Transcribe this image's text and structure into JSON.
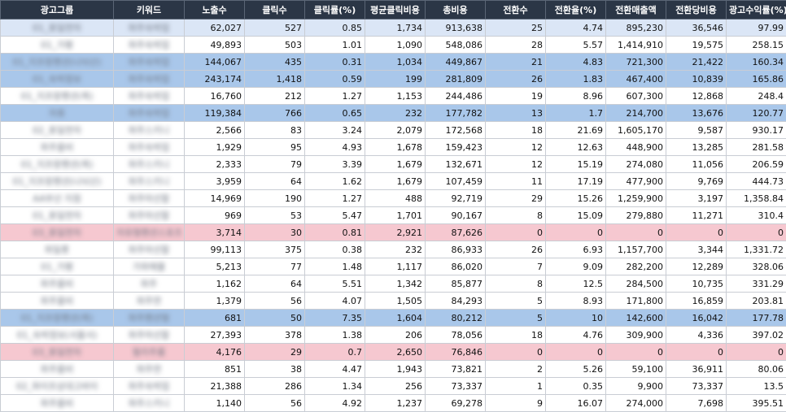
{
  "table": {
    "columns": [
      "광고그룹",
      "키워드",
      "노출수",
      "클릭수",
      "클릭률(%)",
      "평균클릭비용",
      "총비용",
      "전환수",
      "전환율(%)",
      "전환매출액",
      "전환당비용",
      "광고수익률(%)"
    ],
    "rows": [
      {
        "hl": "light",
        "group": "01_휴일연차",
        "keyword": "파주숙박업",
        "cells": [
          "62,027",
          "527",
          "0.85",
          "1,734",
          "913,638",
          "25",
          "4.74",
          "895,230",
          "36,546",
          "97.99"
        ]
      },
      {
        "hl": "none",
        "group": "01_가평",
        "keyword": "파주숙박업",
        "cells": [
          "49,893",
          "503",
          "1.01",
          "1,090",
          "548,086",
          "28",
          "5.57",
          "1,414,910",
          "19,575",
          "258.15"
        ]
      },
      {
        "hl": "blue",
        "group": "01_지프랑펜션(나뉘산)",
        "keyword": "파주숙박업",
        "cells": [
          "144,067",
          "435",
          "0.31",
          "1,034",
          "449,867",
          "21",
          "4.83",
          "721,300",
          "21,422",
          "160.34"
        ]
      },
      {
        "hl": "blue",
        "group": "01_숙박정보",
        "keyword": "파주숙박업",
        "cells": [
          "243,174",
          "1,418",
          "0.59",
          "199",
          "281,809",
          "26",
          "1.83",
          "467,400",
          "10,839",
          "165.86"
        ]
      },
      {
        "hl": "none",
        "group": "01_지프랑펜션(퀵)",
        "keyword": "파주숙박업",
        "cells": [
          "16,760",
          "212",
          "1.27",
          "1,153",
          "244,486",
          "19",
          "8.96",
          "607,300",
          "12,868",
          "248.4"
        ]
      },
      {
        "hl": "blue",
        "group": "자휴",
        "keyword": "파주숙박업",
        "cells": [
          "119,384",
          "766",
          "0.65",
          "232",
          "177,782",
          "13",
          "1.7",
          "214,700",
          "13,676",
          "120.77"
        ]
      },
      {
        "hl": "none",
        "group": "02_휴일연차",
        "keyword": "파주스키니",
        "cells": [
          "2,566",
          "83",
          "3.24",
          "2,079",
          "172,568",
          "18",
          "21.69",
          "1,605,170",
          "9,587",
          "930.17"
        ]
      },
      {
        "hl": "none",
        "group": "파주을비",
        "keyword": "파주숙박업",
        "cells": [
          "1,929",
          "95",
          "4.93",
          "1,678",
          "159,423",
          "12",
          "12.63",
          "448,900",
          "13,285",
          "281.58"
        ]
      },
      {
        "hl": "none",
        "group": "01_지프랑펜션(퀵)",
        "keyword": "파주스키니",
        "cells": [
          "2,333",
          "79",
          "3.39",
          "1,679",
          "132,671",
          "12",
          "15.19",
          "274,080",
          "11,056",
          "206.59"
        ]
      },
      {
        "hl": "none",
        "group": "01_지프랑펜션(나뉘산)",
        "keyword": "파주스키니",
        "cells": [
          "3,959",
          "64",
          "1.62",
          "1,679",
          "107,459",
          "11",
          "17.19",
          "477,900",
          "9,769",
          "444.73"
        ]
      },
      {
        "hl": "none",
        "group": "AA부산 지점",
        "keyword": "파주마선할",
        "cells": [
          "14,969",
          "190",
          "1.27",
          "488",
          "92,719",
          "29",
          "15.26",
          "1,259,900",
          "3,197",
          "1,358.84"
        ]
      },
      {
        "hl": "none",
        "group": "01_휴일연차",
        "keyword": "파주마선할",
        "cells": [
          "969",
          "53",
          "5.47",
          "1,701",
          "90,167",
          "8",
          "15.09",
          "279,880",
          "11,271",
          "310.4"
        ]
      },
      {
        "hl": "pink",
        "group": "03_휴일연차",
        "keyword": "자유형펜션스포츠",
        "cells": [
          "3,714",
          "30",
          "0.81",
          "2,921",
          "87,626",
          "0",
          "0",
          "0",
          "0",
          "0"
        ]
      },
      {
        "hl": "none",
        "group": "파일롯",
        "keyword": "파주마선할",
        "cells": [
          "99,113",
          "375",
          "0.38",
          "232",
          "86,933",
          "26",
          "6.93",
          "1,157,700",
          "3,344",
          "1,331.72"
        ]
      },
      {
        "hl": "none",
        "group": "01_가평",
        "keyword": "가파매물",
        "cells": [
          "5,213",
          "77",
          "1.48",
          "1,117",
          "86,020",
          "7",
          "9.09",
          "282,200",
          "12,289",
          "328.06"
        ]
      },
      {
        "hl": "none",
        "group": "파주을비",
        "keyword": "파주",
        "cells": [
          "1,162",
          "64",
          "5.51",
          "1,342",
          "85,877",
          "8",
          "12.5",
          "284,500",
          "10,735",
          "331.29"
        ]
      },
      {
        "hl": "none",
        "group": "파주을비",
        "keyword": "파주연",
        "cells": [
          "1,379",
          "56",
          "4.07",
          "1,505",
          "84,293",
          "5",
          "8.93",
          "171,800",
          "16,859",
          "203.81"
        ]
      },
      {
        "hl": "blue",
        "group": "01_지프랑펜션(퀵)",
        "keyword": "파주펜션형",
        "cells": [
          "681",
          "50",
          "7.35",
          "1,604",
          "80,212",
          "5",
          "10",
          "142,600",
          "16,042",
          "177.78"
        ]
      },
      {
        "hl": "none",
        "group": "01_숙박정보(서울서)",
        "keyword": "파주마선할",
        "cells": [
          "27,393",
          "378",
          "1.38",
          "206",
          "78,056",
          "18",
          "4.76",
          "309,900",
          "4,336",
          "397.02"
        ]
      },
      {
        "hl": "pink",
        "group": "03_휴일연차",
        "keyword": "필리주룸",
        "cells": [
          "4,176",
          "29",
          "0.7",
          "2,650",
          "76,846",
          "0",
          "0",
          "0",
          "0",
          "0"
        ]
      },
      {
        "hl": "none",
        "group": "파주을비",
        "keyword": "파주연",
        "cells": [
          "851",
          "38",
          "4.47",
          "1,943",
          "73,821",
          "2",
          "5.26",
          "59,100",
          "36,911",
          "80.06"
        ]
      },
      {
        "hl": "none",
        "group": "02_파이프상대고바이",
        "keyword": "파주숙박업",
        "cells": [
          "21,388",
          "286",
          "1.34",
          "256",
          "73,337",
          "1",
          "0.35",
          "9,900",
          "73,337",
          "13.5"
        ]
      },
      {
        "hl": "none",
        "group": "파주을비",
        "keyword": "파주스키니",
        "cells": [
          "1,140",
          "56",
          "4.92",
          "1,237",
          "69,278",
          "9",
          "16.07",
          "274,000",
          "7,698",
          "395.51"
        ]
      }
    ]
  }
}
